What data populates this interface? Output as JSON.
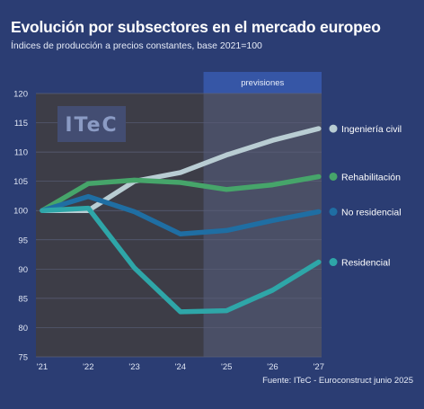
{
  "header": {
    "title": "Evolución por subsectores en el mercado europeo",
    "subtitle": "Índices de producción a precios constantes, base 2021=100"
  },
  "logo_text": "ITeC",
  "source": "Fuente: ITeC - Euroconstruct junio 2025",
  "colors": {
    "background": "#2b3d73",
    "plot_area": "#3d3d47",
    "forecast_area": "#4a4f66",
    "forecast_band": "#3656a6"
  },
  "chart_data": {
    "type": "line",
    "x": [
      "'21",
      "'22",
      "'23",
      "'24",
      "'25",
      "'26",
      "'27"
    ],
    "ylim": [
      75,
      120
    ],
    "yticks": [
      75,
      80,
      85,
      90,
      95,
      100,
      105,
      110,
      115,
      120
    ],
    "grid": true,
    "forecast_label": "previsiones",
    "forecast_start": "'25",
    "series": [
      {
        "name": "Ingeniería civil",
        "color": "#b9cdd3",
        "values": [
          100,
          100,
          105,
          106.5,
          109.5,
          112,
          114
        ]
      },
      {
        "name": "Rehabilitación",
        "color": "#46a56a",
        "values": [
          100,
          104.6,
          105.2,
          104.8,
          103.6,
          104.4,
          105.8
        ]
      },
      {
        "name": "No residencial",
        "color": "#1f6ea3",
        "values": [
          100,
          102.4,
          99.8,
          96,
          96.6,
          98.3,
          99.8
        ]
      },
      {
        "name": "Residencial",
        "color": "#2ea6a8",
        "values": [
          100,
          100.4,
          90.2,
          82.7,
          82.9,
          86.4,
          91.2
        ]
      }
    ]
  }
}
